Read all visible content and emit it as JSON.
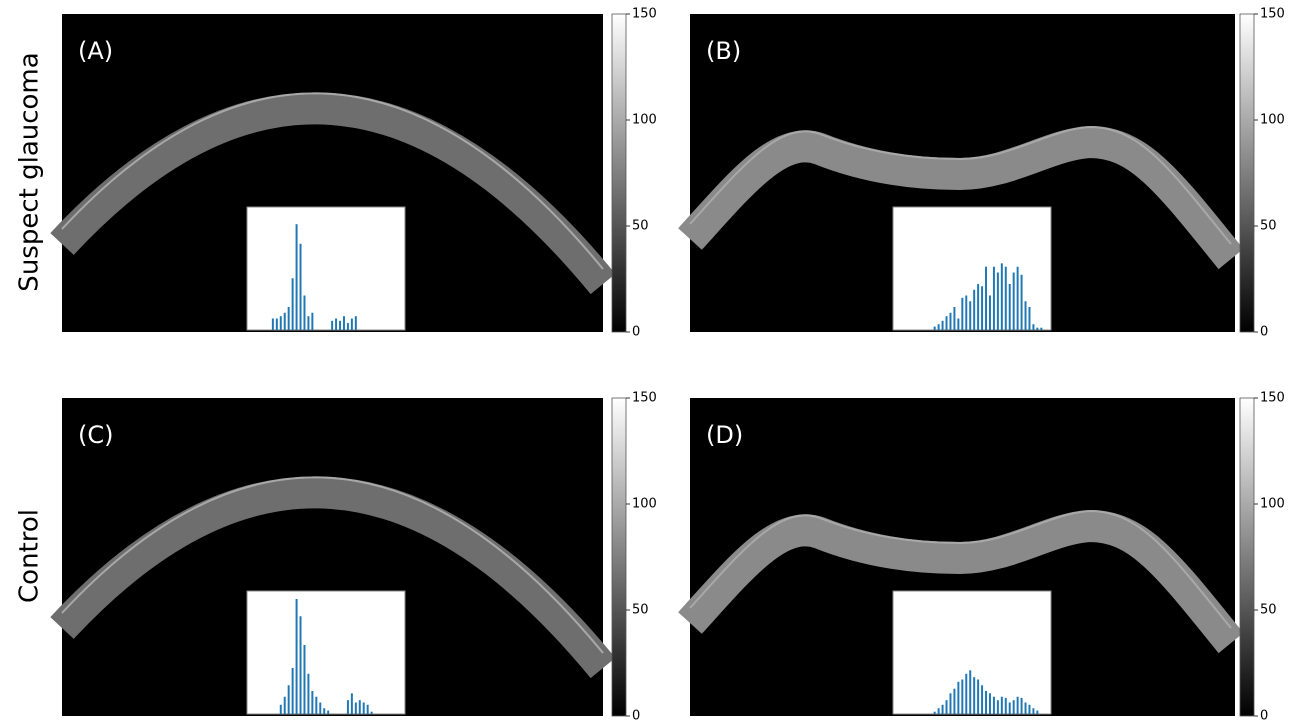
{
  "row_labels": [
    "Suspect glaucoma",
    "Control"
  ],
  "panels": [
    {
      "label": "(A)",
      "colorbar": {
        "lim": [
          0,
          150
        ],
        "ticks": [
          0,
          50,
          100,
          150
        ]
      },
      "histogram": [
        0,
        0,
        0,
        0,
        0,
        0,
        10,
        10,
        12,
        15,
        20,
        45,
        92,
        75,
        30,
        12,
        15,
        0,
        0,
        0,
        0,
        8,
        10,
        8,
        12,
        6,
        10,
        12,
        0,
        0,
        0,
        0,
        0,
        0,
        0,
        0,
        0,
        0,
        0,
        0
      ]
    },
    {
      "label": "(B)",
      "colorbar": {
        "lim": [
          0,
          150
        ],
        "ticks": [
          0,
          50,
          100,
          150
        ]
      },
      "histogram": [
        0,
        0,
        0,
        0,
        0,
        0,
        0,
        0,
        0,
        0,
        3,
        5,
        8,
        12,
        15,
        20,
        10,
        28,
        30,
        25,
        35,
        40,
        38,
        55,
        30,
        55,
        50,
        58,
        55,
        40,
        50,
        55,
        48,
        25,
        20,
        5,
        2,
        2,
        0,
        0
      ]
    },
    {
      "label": "(C)",
      "colorbar": {
        "lim": [
          0,
          150
        ],
        "ticks": [
          0,
          50,
          100,
          150
        ]
      },
      "histogram": [
        0,
        0,
        0,
        0,
        0,
        0,
        0,
        0,
        8,
        15,
        25,
        40,
        100,
        85,
        60,
        35,
        20,
        15,
        10,
        5,
        3,
        0,
        0,
        0,
        0,
        12,
        18,
        10,
        12,
        10,
        8,
        2,
        0,
        0,
        0,
        0,
        0,
        0,
        0,
        0
      ]
    },
    {
      "label": "(D)",
      "colorbar": {
        "lim": [
          0,
          150
        ],
        "ticks": [
          0,
          50,
          100,
          150
        ]
      },
      "histogram": [
        0,
        0,
        0,
        0,
        0,
        0,
        0,
        0,
        0,
        0,
        2,
        5,
        8,
        12,
        18,
        22,
        28,
        30,
        35,
        38,
        32,
        30,
        25,
        20,
        18,
        15,
        12,
        15,
        14,
        10,
        12,
        15,
        14,
        10,
        8,
        5,
        3,
        0,
        0,
        0
      ]
    }
  ]
}
